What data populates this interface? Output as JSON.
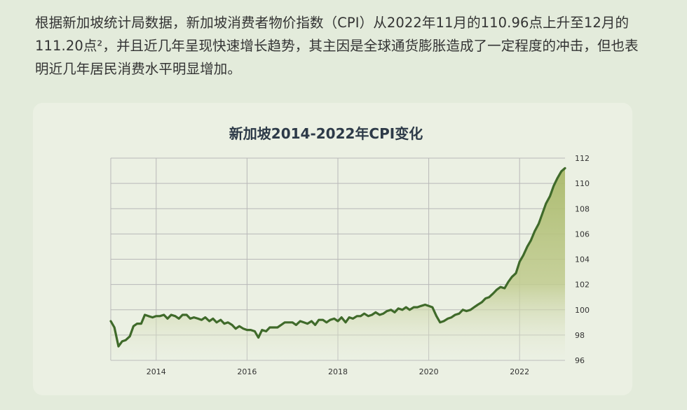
{
  "intro_text": "根据新加坡统计局数据，新加坡消费者物价指数（CPI）从2022年11月的110.96点上升至12月的111.20点²，并且近几年呈现快速增长趋势，其主因是全球通货膨胀造成了一定程度的冲击，但也表明近几年居民消费水平明显增加。",
  "colors": {
    "line": "#3f6a2a",
    "fill": "#b5c27e",
    "grid": "#b8b8b8"
  },
  "chart_data": {
    "type": "area",
    "title": "新加坡2014-2022年CPI变化",
    "xlabel": "",
    "ylabel": "",
    "xlim": [
      2013.0,
      2023.0
    ],
    "ylim": [
      96,
      112
    ],
    "x_ticks": [
      2014,
      2016,
      2018,
      2020,
      2022
    ],
    "y_ticks": [
      96,
      98,
      100,
      102,
      104,
      106,
      108,
      110,
      112
    ],
    "grid": true,
    "legend": "none",
    "series": [
      {
        "points": [
          [
            2013.0,
            99.1
          ],
          [
            2013.08,
            98.6
          ],
          [
            2013.17,
            97.1
          ],
          [
            2013.25,
            97.5
          ],
          [
            2013.33,
            97.6
          ],
          [
            2013.42,
            97.9
          ],
          [
            2013.5,
            98.7
          ],
          [
            2013.58,
            98.9
          ],
          [
            2013.67,
            98.9
          ],
          [
            2013.75,
            99.6
          ],
          [
            2013.83,
            99.5
          ],
          [
            2013.92,
            99.4
          ],
          [
            2014.0,
            99.5
          ],
          [
            2014.08,
            99.5
          ],
          [
            2014.17,
            99.6
          ],
          [
            2014.25,
            99.3
          ],
          [
            2014.33,
            99.6
          ],
          [
            2014.42,
            99.5
          ],
          [
            2014.5,
            99.3
          ],
          [
            2014.58,
            99.6
          ],
          [
            2014.67,
            99.6
          ],
          [
            2014.75,
            99.3
          ],
          [
            2014.83,
            99.4
          ],
          [
            2014.92,
            99.3
          ],
          [
            2015.0,
            99.2
          ],
          [
            2015.08,
            99.4
          ],
          [
            2015.17,
            99.1
          ],
          [
            2015.25,
            99.3
          ],
          [
            2015.33,
            99.0
          ],
          [
            2015.42,
            99.2
          ],
          [
            2015.5,
            98.9
          ],
          [
            2015.58,
            99.0
          ],
          [
            2015.67,
            98.8
          ],
          [
            2015.75,
            98.5
          ],
          [
            2015.83,
            98.7
          ],
          [
            2015.92,
            98.5
          ],
          [
            2016.0,
            98.4
          ],
          [
            2016.08,
            98.4
          ],
          [
            2016.17,
            98.3
          ],
          [
            2016.25,
            97.8
          ],
          [
            2016.33,
            98.4
          ],
          [
            2016.42,
            98.3
          ],
          [
            2016.5,
            98.6
          ],
          [
            2016.58,
            98.6
          ],
          [
            2016.67,
            98.6
          ],
          [
            2016.75,
            98.8
          ],
          [
            2016.83,
            99.0
          ],
          [
            2016.92,
            99.0
          ],
          [
            2017.0,
            99.0
          ],
          [
            2017.08,
            98.8
          ],
          [
            2017.17,
            99.1
          ],
          [
            2017.25,
            99.0
          ],
          [
            2017.33,
            98.9
          ],
          [
            2017.42,
            99.1
          ],
          [
            2017.5,
            98.8
          ],
          [
            2017.58,
            99.2
          ],
          [
            2017.67,
            99.2
          ],
          [
            2017.75,
            99.0
          ],
          [
            2017.83,
            99.2
          ],
          [
            2017.92,
            99.3
          ],
          [
            2018.0,
            99.1
          ],
          [
            2018.08,
            99.4
          ],
          [
            2018.17,
            99.0
          ],
          [
            2018.25,
            99.4
          ],
          [
            2018.33,
            99.3
          ],
          [
            2018.42,
            99.5
          ],
          [
            2018.5,
            99.5
          ],
          [
            2018.58,
            99.7
          ],
          [
            2018.67,
            99.5
          ],
          [
            2018.75,
            99.6
          ],
          [
            2018.83,
            99.8
          ],
          [
            2018.92,
            99.6
          ],
          [
            2019.0,
            99.7
          ],
          [
            2019.08,
            99.9
          ],
          [
            2019.17,
            100.0
          ],
          [
            2019.25,
            99.8
          ],
          [
            2019.33,
            100.1
          ],
          [
            2019.42,
            100.0
          ],
          [
            2019.5,
            100.2
          ],
          [
            2019.58,
            100.0
          ],
          [
            2019.67,
            100.2
          ],
          [
            2019.75,
            100.2
          ],
          [
            2019.83,
            100.3
          ],
          [
            2019.92,
            100.4
          ],
          [
            2020.0,
            100.3
          ],
          [
            2020.08,
            100.2
          ],
          [
            2020.17,
            99.5
          ],
          [
            2020.25,
            99.0
          ],
          [
            2020.33,
            99.1
          ],
          [
            2020.42,
            99.3
          ],
          [
            2020.5,
            99.4
          ],
          [
            2020.58,
            99.6
          ],
          [
            2020.67,
            99.7
          ],
          [
            2020.75,
            100.0
          ],
          [
            2020.83,
            99.9
          ],
          [
            2020.92,
            100.0
          ],
          [
            2021.0,
            100.2
          ],
          [
            2021.08,
            100.4
          ],
          [
            2021.17,
            100.6
          ],
          [
            2021.25,
            100.9
          ],
          [
            2021.33,
            101.0
          ],
          [
            2021.42,
            101.3
          ],
          [
            2021.5,
            101.6
          ],
          [
            2021.58,
            101.8
          ],
          [
            2021.67,
            101.7
          ],
          [
            2021.75,
            102.2
          ],
          [
            2021.83,
            102.6
          ],
          [
            2021.92,
            102.9
          ],
          [
            2022.0,
            103.8
          ],
          [
            2022.08,
            104.3
          ],
          [
            2022.17,
            105.0
          ],
          [
            2022.25,
            105.5
          ],
          [
            2022.33,
            106.2
          ],
          [
            2022.42,
            106.8
          ],
          [
            2022.5,
            107.6
          ],
          [
            2022.58,
            108.4
          ],
          [
            2022.67,
            109.0
          ],
          [
            2022.75,
            109.8
          ],
          [
            2022.83,
            110.4
          ],
          [
            2022.92,
            110.96
          ],
          [
            2023.0,
            111.2
          ]
        ]
      }
    ]
  }
}
